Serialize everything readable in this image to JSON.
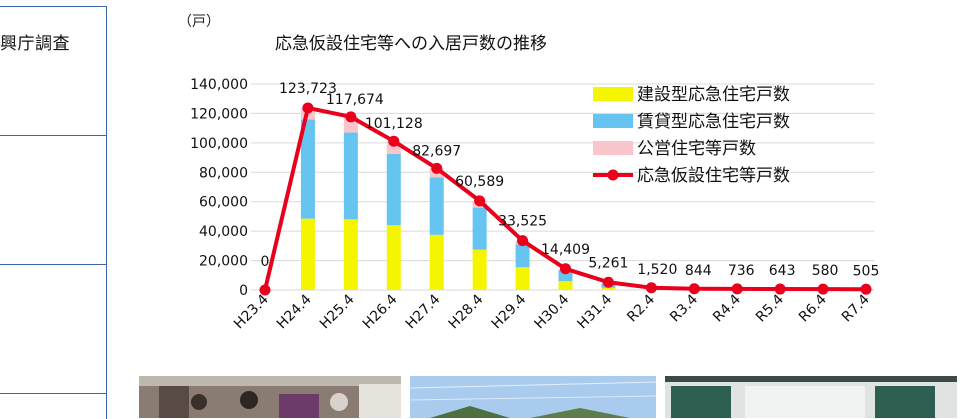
{
  "side_table": {
    "header": "興庁調査"
  },
  "chart_data": {
    "type": "bar+line",
    "title": "応急仮設住宅等への入居戸数の推移",
    "unit_label": "（戸）",
    "categories": [
      "H23.4",
      "H24.4",
      "H25.4",
      "H26.4",
      "H27.4",
      "H28.4",
      "H29.4",
      "H30.4",
      "H31.4",
      "R2.4",
      "R3.4",
      "R4.4",
      "R5.4",
      "R6.4",
      "R7.4"
    ],
    "ylim": [
      0,
      140000
    ],
    "yticks": [
      "0",
      "20,000",
      "40,000",
      "60,000",
      "80,000",
      "100,000",
      "120,000",
      "140,000"
    ],
    "grid": true,
    "legend_position": "top-right",
    "series": [
      {
        "name": "建設型応急住宅戸数",
        "kind": "stacked-bar",
        "color": "#f5f500",
        "values": [
          0,
          48500,
          48000,
          44000,
          37500,
          27500,
          15500,
          6000,
          1500,
          500,
          300,
          250,
          200,
          150,
          100
        ]
      },
      {
        "name": "賃貸型応急住宅戸数",
        "kind": "stacked-bar",
        "color": "#66c4f0",
        "values": [
          0,
          67500,
          59000,
          48500,
          39000,
          28500,
          15500,
          7500,
          3000,
          800,
          400,
          350,
          300,
          280,
          250
        ]
      },
      {
        "name": "公営住宅等戸数",
        "kind": "stacked-bar",
        "color": "#f9c6cb",
        "values": [
          0,
          7723,
          10674,
          8628,
          6197,
          4589,
          2525,
          909,
          761,
          220,
          144,
          136,
          143,
          150,
          155
        ]
      },
      {
        "name": "応急仮設住宅等戸数",
        "kind": "line",
        "color": "#e8001c",
        "values": [
          0,
          123723,
          117674,
          101128,
          82697,
          60589,
          33525,
          14409,
          5261,
          1520,
          844,
          736,
          643,
          580,
          505
        ],
        "labels": [
          "0",
          "123,723",
          "117,674",
          "101,128",
          "82,697",
          "60,589",
          "33,525",
          "14,409",
          "5,261",
          "1,520",
          "844",
          "736",
          "643",
          "580",
          "505"
        ]
      }
    ]
  },
  "photos": [
    {
      "name": "photo-classroom",
      "bg": "#7a6a62"
    },
    {
      "name": "photo-sky",
      "bg": "#9ec3e6"
    },
    {
      "name": "photo-room",
      "bg": "#cfd6d4"
    }
  ]
}
